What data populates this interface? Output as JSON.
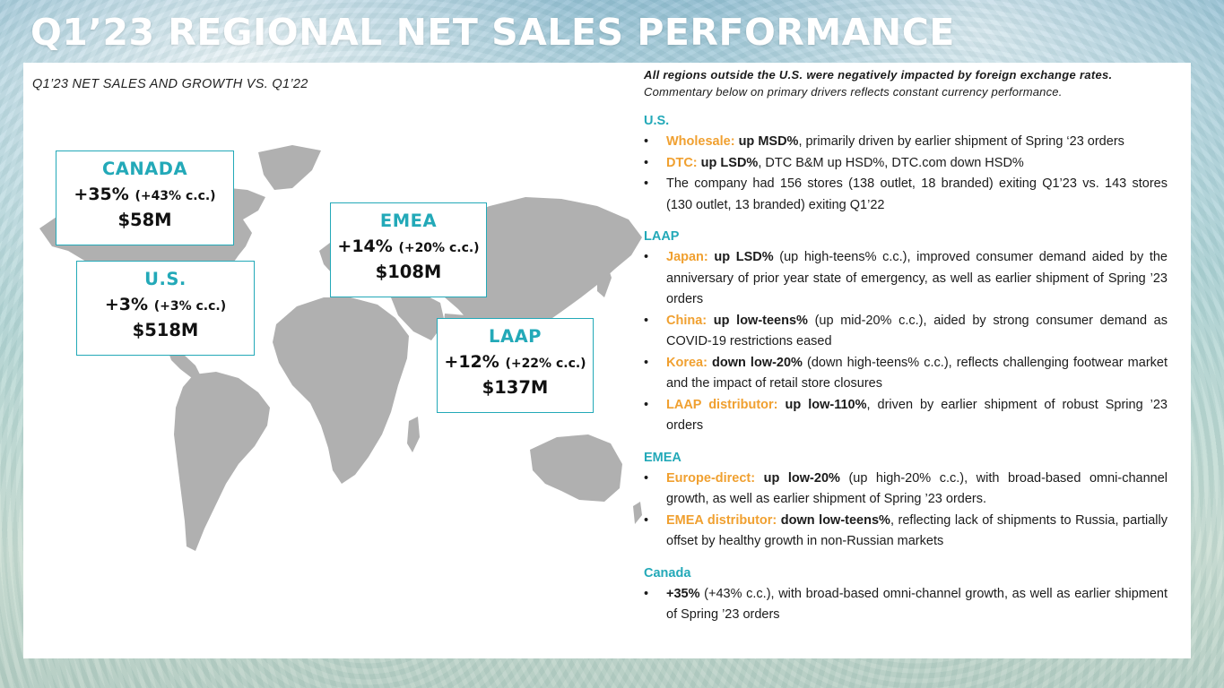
{
  "title": "Q1’23 REGIONAL NET SALES PERFORMANCE",
  "subtitle": "Q1’23 NET SALES AND GROWTH VS. Q1’22",
  "colors": {
    "accent": "#23a9b8",
    "highlight": "#f0a030",
    "map": "#b0b0b0"
  },
  "regions": {
    "canada": {
      "name": "CANADA",
      "growth": "+35%",
      "cc": "(+43% c.c.)",
      "sales": "$58M"
    },
    "us": {
      "name": "U.S.",
      "growth": "+3%",
      "cc": "(+3% c.c.)",
      "sales": "$518M"
    },
    "emea": {
      "name": "EMEA",
      "growth": "+14%",
      "cc": "(+20% c.c.)",
      "sales": "$108M"
    },
    "laap": {
      "name": "LAAP",
      "growth": "+12%",
      "cc": "(+22% c.c.)",
      "sales": "$137M"
    }
  },
  "commentary": {
    "intro1": "All regions outside the U.S. were negatively impacted by foreign exchange rates.",
    "intro2": "Commentary below on primary drivers reflects constant currency performance.",
    "us": {
      "heading": "U.S.",
      "b1": {
        "label": "Wholesale:",
        "em": "up MSD%",
        "text": ", primarily driven by earlier shipment of Spring ‘23 orders"
      },
      "b2": {
        "label": "DTC:",
        "em": "up LSD%",
        "text": ", DTC B&M up HSD%, DTC.com down HSD%"
      },
      "b3": {
        "text": "The company had 156 stores (138 outlet, 18 branded) exiting Q1’23 vs. 143 stores (130 outlet, 13 branded) exiting Q1’22"
      }
    },
    "laap": {
      "heading": "LAAP",
      "b1": {
        "label": "Japan:",
        "em": "up LSD%",
        "text": " (up high-teens% c.c.), improved consumer demand aided by the anniversary of prior year state of emergency, as well as earlier shipment of Spring ’23 orders"
      },
      "b2": {
        "label": "China:",
        "em": "up low-teens%",
        "text": " (up mid-20% c.c.), aided by strong consumer demand as COVID-19 restrictions eased"
      },
      "b3": {
        "label": "Korea:",
        "em": "down low-20%",
        "text": " (down high-teens% c.c.), reflects challenging footwear market and the impact of retail store closures"
      },
      "b4": {
        "label": "LAAP distributor:",
        "em": "up low-110%",
        "text": ", driven by earlier shipment of robust Spring ’23 orders"
      }
    },
    "emea": {
      "heading": "EMEA",
      "b1": {
        "label": "Europe-direct:",
        "em": "up low-20%",
        "text": " (up high-20% c.c.), with broad-based omni-channel growth, as well as earlier shipment of Spring ’23 orders."
      },
      "b2": {
        "label": "EMEA distributor:",
        "em": "down low-teens%",
        "text": ", reflecting lack of shipments to Russia, partially offset by healthy growth in non-Russian markets"
      }
    },
    "canada": {
      "heading": "Canada",
      "b1": {
        "em": "+35%",
        "text": " (+43% c.c.), with broad-based omni-channel growth, as well as earlier shipment of Spring ’23 orders"
      }
    }
  }
}
